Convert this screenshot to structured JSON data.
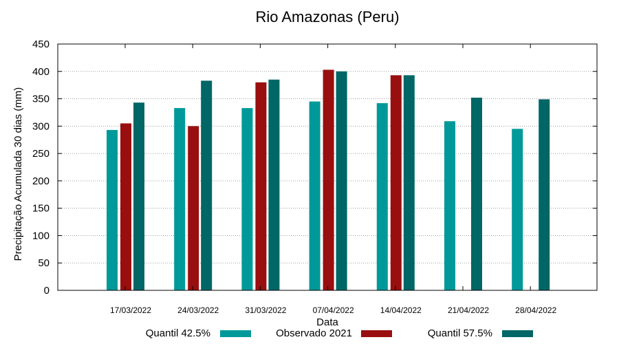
{
  "chart_data": {
    "type": "bar",
    "title": "Rio Amazonas (Peru)",
    "xlabel": "Data",
    "ylabel": "Precipitação Acumulada 30 dias (mm)",
    "ylim": [
      0,
      450
    ],
    "yticks": [
      0,
      50,
      100,
      150,
      200,
      250,
      300,
      350,
      400,
      450
    ],
    "grid": true,
    "legend_position": "bottom",
    "categories": [
      "17/03/2022",
      "24/03/2022",
      "31/03/2022",
      "07/04/2022",
      "14/04/2022",
      "21/04/2022",
      "28/04/2022"
    ],
    "series": [
      {
        "name": "Quantil 42.5%",
        "color": "#009999",
        "values": [
          293,
          333,
          333,
          345,
          342,
          309,
          295
        ]
      },
      {
        "name": "Observado 2021",
        "color": "#990f0f",
        "values": [
          305,
          300,
          380,
          403,
          393,
          null,
          null
        ]
      },
      {
        "name": "Quantil 57.5%",
        "color": "#006666",
        "values": [
          343,
          383,
          385,
          400,
          393,
          352,
          349
        ]
      }
    ]
  }
}
